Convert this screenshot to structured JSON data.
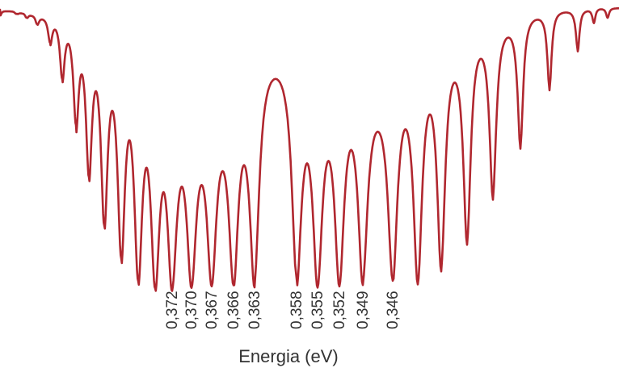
{
  "chart_data": {
    "type": "line",
    "title": "",
    "xlabel": "Energia (eV)",
    "ylabel": "",
    "grid": false,
    "legend": "none",
    "line_color": "#b0272f",
    "peak_labels": [
      "0,372",
      "0,370",
      "0,367",
      "0,366",
      "0,363",
      "0,358",
      "0,355",
      "0,352",
      "0,349",
      "0,346"
    ]
  }
}
